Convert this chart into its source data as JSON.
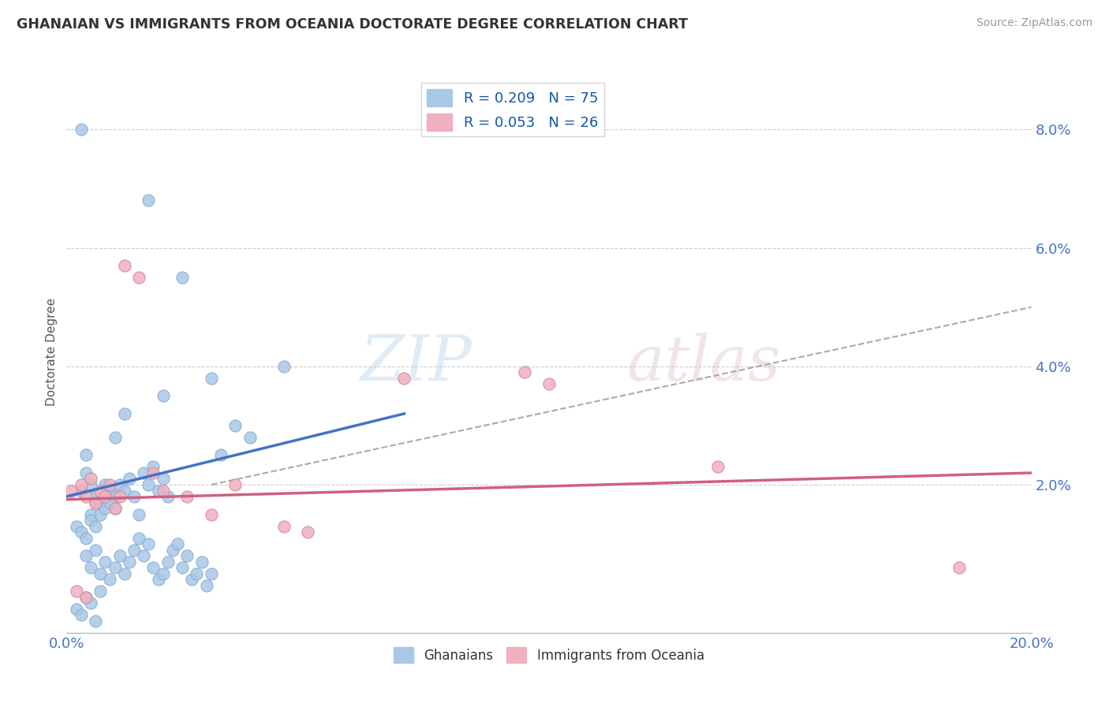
{
  "title": "GHANAIAN VS IMMIGRANTS FROM OCEANIA DOCTORATE DEGREE CORRELATION CHART",
  "source": "Source: ZipAtlas.com",
  "ylabel": "Doctorate Degree",
  "xlim": [
    0.0,
    20.0
  ],
  "ylim": [
    -0.5,
    9.0
  ],
  "ytick_labels": [
    "2.0%",
    "4.0%",
    "6.0%",
    "8.0%"
  ],
  "ytick_values": [
    2.0,
    4.0,
    6.0,
    8.0
  ],
  "xtick_labels": [
    "0.0%",
    "20.0%"
  ],
  "xtick_values": [
    0.0,
    20.0
  ],
  "legend_r1": "R = 0.209",
  "legend_n1": "N = 75",
  "legend_r2": "R = 0.053",
  "legend_n2": "N = 26",
  "color_blue": "#A8C8E8",
  "color_pink": "#F0B0C0",
  "color_trend_blue": "#4472C4",
  "color_trend_pink": "#D06080",
  "color_trend_dashed": "#AAAAAA",
  "background_color": "#FFFFFF",
  "watermark_zip": "ZIP",
  "watermark_atlas": "atlas",
  "ghanaian_x": [
    0.3,
    1.7,
    2.4,
    0.4,
    0.6,
    0.5,
    0.7,
    0.8,
    0.9,
    1.0,
    0.2,
    0.3,
    0.5,
    0.4,
    0.6,
    0.7,
    0.8,
    1.0,
    0.9,
    1.1,
    1.2,
    1.3,
    1.4,
    1.5,
    1.6,
    1.7,
    1.8,
    1.9,
    2.0,
    2.1,
    0.4,
    0.5,
    0.6,
    0.7,
    0.8,
    0.9,
    1.0,
    1.1,
    1.2,
    1.3,
    1.4,
    1.5,
    1.6,
    1.7,
    1.8,
    1.9,
    2.0,
    2.1,
    2.2,
    2.3,
    2.4,
    2.5,
    2.6,
    2.7,
    2.8,
    2.9,
    3.0,
    3.2,
    3.5,
    3.8,
    0.3,
    0.4,
    0.5,
    0.6,
    0.2,
    0.3,
    0.4,
    0.5,
    0.6,
    0.7,
    1.0,
    1.2,
    2.0,
    3.0,
    4.5
  ],
  "ghanaian_y": [
    8.0,
    6.8,
    5.5,
    2.5,
    1.8,
    1.5,
    1.7,
    2.0,
    1.9,
    1.6,
    1.3,
    1.2,
    1.4,
    1.1,
    1.3,
    1.5,
    1.6,
    1.8,
    1.7,
    2.0,
    1.9,
    2.1,
    1.8,
    1.5,
    2.2,
    2.0,
    2.3,
    1.9,
    2.1,
    1.8,
    0.8,
    0.6,
    0.9,
    0.5,
    0.7,
    0.4,
    0.6,
    0.8,
    0.5,
    0.7,
    0.9,
    1.1,
    0.8,
    1.0,
    0.6,
    0.4,
    0.5,
    0.7,
    0.9,
    1.0,
    0.6,
    0.8,
    0.4,
    0.5,
    0.7,
    0.3,
    0.5,
    2.5,
    3.0,
    2.8,
    1.9,
    2.2,
    2.0,
    1.7,
    -0.1,
    -0.2,
    0.1,
    0.0,
    -0.3,
    0.2,
    2.8,
    3.2,
    3.5,
    3.8,
    4.0
  ],
  "oceania_x": [
    0.1,
    0.3,
    0.4,
    0.5,
    0.6,
    0.7,
    0.8,
    0.9,
    1.0,
    1.1,
    1.2,
    1.5,
    1.8,
    2.0,
    2.5,
    3.0,
    3.5,
    4.5,
    5.0,
    7.0,
    9.5,
    10.0,
    13.5,
    18.5,
    0.2,
    0.4
  ],
  "oceania_y": [
    1.9,
    2.0,
    1.8,
    2.1,
    1.7,
    1.9,
    1.8,
    2.0,
    1.6,
    1.8,
    5.7,
    5.5,
    2.2,
    1.9,
    1.8,
    1.5,
    2.0,
    1.3,
    1.2,
    3.8,
    3.9,
    3.7,
    2.3,
    0.6,
    0.2,
    0.1
  ],
  "blue_trend_x0": 0.0,
  "blue_trend_y0": 1.8,
  "blue_trend_x1": 7.0,
  "blue_trend_y1": 3.2,
  "pink_trend_x0": 0.0,
  "pink_trend_y0": 1.75,
  "pink_trend_x1": 20.0,
  "pink_trend_y1": 2.2,
  "dashed_trend_x0": 3.0,
  "dashed_trend_y0": 2.0,
  "dashed_trend_x1": 20.0,
  "dashed_trend_y1": 5.0
}
